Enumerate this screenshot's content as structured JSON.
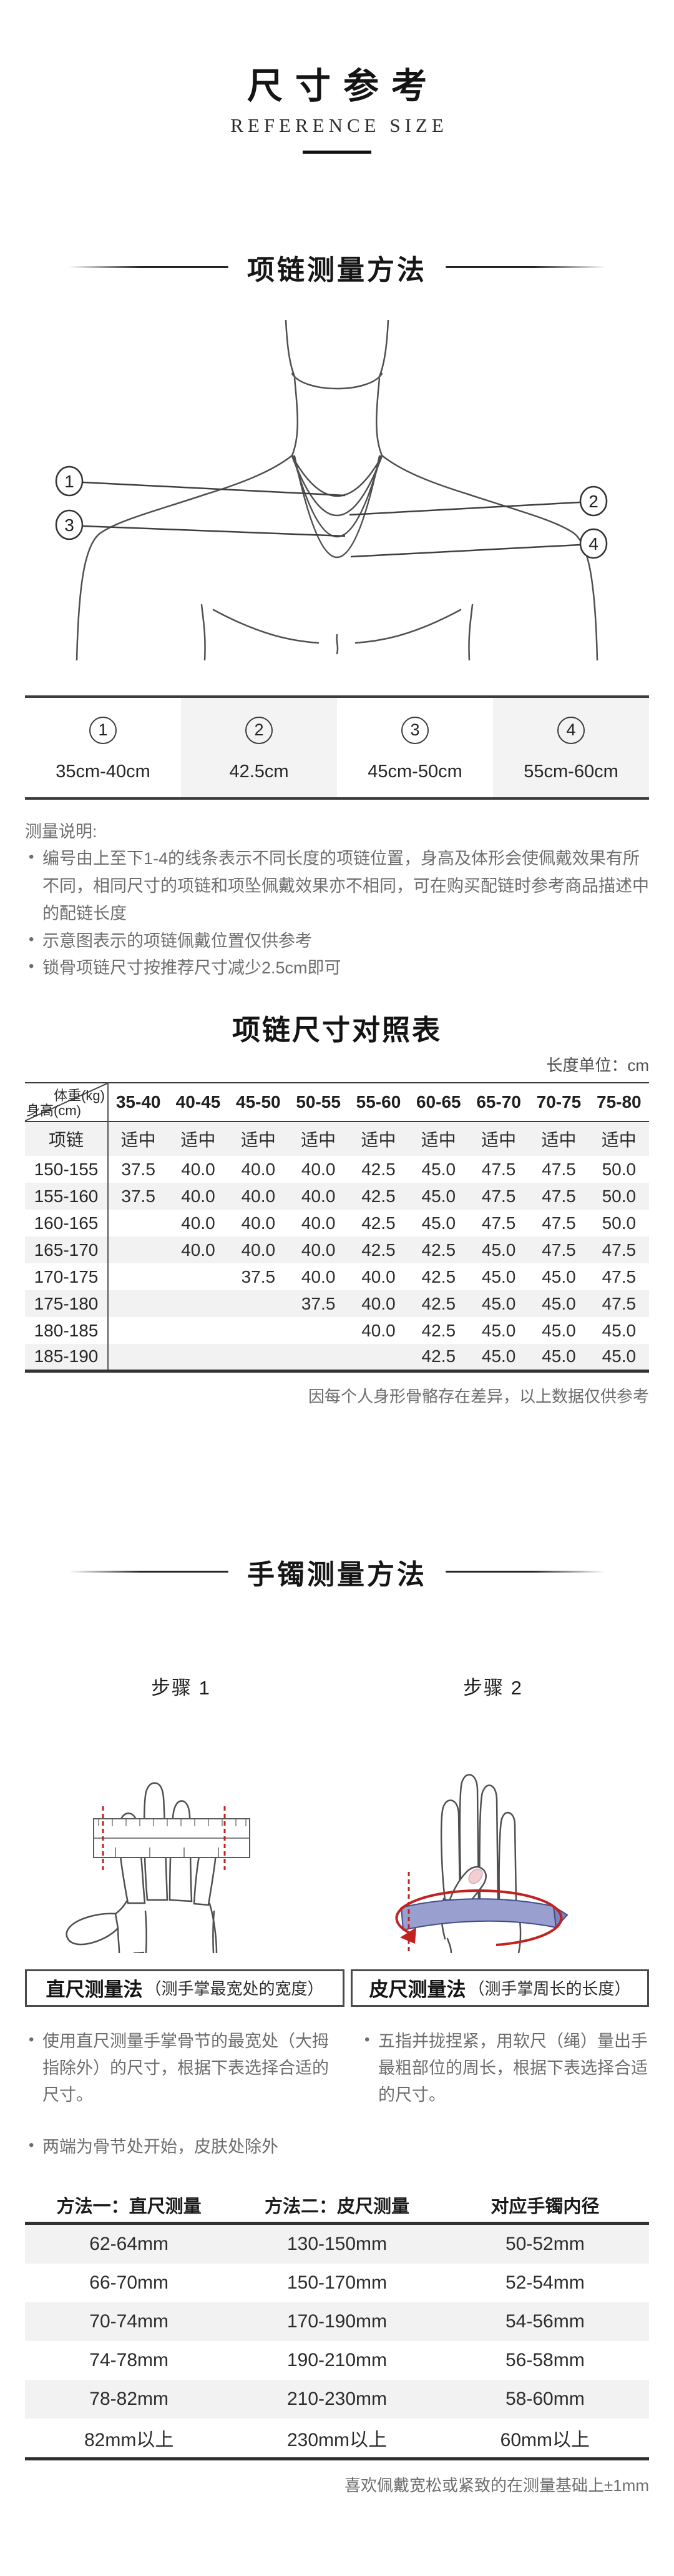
{
  "page": {
    "title": "尺寸参考",
    "subtitle": "REFERENCE SIZE"
  },
  "necklace_section": {
    "heading": "项链测量方法",
    "illustration_labels": [
      "1",
      "2",
      "3",
      "4"
    ],
    "position_table": {
      "columns": [
        {
          "num": "1",
          "size": "35cm-40cm"
        },
        {
          "num": "2",
          "size": "42.5cm"
        },
        {
          "num": "3",
          "size": "45cm-50cm"
        },
        {
          "num": "4",
          "size": "55cm-60cm"
        }
      ]
    },
    "notes_title": "测量说明:",
    "notes": [
      "编号由上至下1-4的线条表示不同长度的项链位置，身高及体形会使佩戴效果有所不同，相同尺寸的项链和项坠佩戴效果亦不相同，可在购买配链时参考商品描述中的配链长度",
      "示意图表示的项链佩戴位置仅供参考",
      "锁骨项链尺寸按推荐尺寸减少2.5cm即可"
    ]
  },
  "size_chart": {
    "title": "项链尺寸对照表",
    "unit_label": "长度单位：cm",
    "corner": {
      "top": "体重(kg)",
      "bottom": "身高(cm)"
    },
    "weight_columns": [
      "35-40",
      "40-45",
      "45-50",
      "50-55",
      "55-60",
      "60-65",
      "65-70",
      "70-75",
      "75-80"
    ],
    "fit_row": {
      "label": "项链",
      "values": [
        "适中",
        "适中",
        "适中",
        "适中",
        "适中",
        "适中",
        "适中",
        "适中",
        "适中"
      ]
    },
    "rows": [
      {
        "height": "150-155",
        "values": [
          "37.5",
          "40.0",
          "40.0",
          "40.0",
          "42.5",
          "45.0",
          "47.5",
          "47.5",
          "50.0"
        ]
      },
      {
        "height": "155-160",
        "values": [
          "37.5",
          "40.0",
          "40.0",
          "40.0",
          "42.5",
          "45.0",
          "47.5",
          "47.5",
          "50.0"
        ]
      },
      {
        "height": "160-165",
        "values": [
          "",
          "40.0",
          "40.0",
          "40.0",
          "42.5",
          "45.0",
          "47.5",
          "47.5",
          "50.0"
        ]
      },
      {
        "height": "165-170",
        "values": [
          "",
          "40.0",
          "40.0",
          "40.0",
          "42.5",
          "42.5",
          "45.0",
          "47.5",
          "47.5"
        ]
      },
      {
        "height": "170-175",
        "values": [
          "",
          "",
          "37.5",
          "40.0",
          "40.0",
          "42.5",
          "45.0",
          "45.0",
          "47.5"
        ]
      },
      {
        "height": "175-180",
        "values": [
          "",
          "",
          "",
          "37.5",
          "40.0",
          "42.5",
          "45.0",
          "45.0",
          "47.5"
        ]
      },
      {
        "height": "180-185",
        "values": [
          "",
          "",
          "",
          "",
          "40.0",
          "42.5",
          "45.0",
          "45.0",
          "45.0"
        ]
      },
      {
        "height": "185-190",
        "values": [
          "",
          "",
          "",
          "",
          "",
          "42.5",
          "45.0",
          "45.0",
          "45.0"
        ]
      }
    ],
    "footnote": "因每个人身形骨骼存在差异，以上数据仅供参考"
  },
  "bracelet_section": {
    "heading": "手镯测量方法",
    "steps": [
      "步骤 1",
      "步骤 2"
    ],
    "methods": [
      {
        "name": "直尺测量法",
        "desc": "（测手掌最宽处的宽度）",
        "bullets": [
          "使用直尺测量手掌骨节的最宽处（大拇指除外）的尺寸，根据下表选择合适的尺寸。",
          "两端为骨节处开始，皮肤处除外"
        ]
      },
      {
        "name": "皮尺测量法",
        "desc": "（测手掌周长的长度）",
        "bullets": [
          "五指并拢捏紧，用软尺（绳）量出手最粗部位的周长，根据下表选择合适的尺寸。"
        ]
      }
    ],
    "size_table": {
      "headers": [
        "方法一：直尺测量",
        "方法二：皮尺测量",
        "对应手镯内径"
      ],
      "rows": [
        [
          "62-64mm",
          "130-150mm",
          "50-52mm"
        ],
        [
          "66-70mm",
          "150-170mm",
          "52-54mm"
        ],
        [
          "70-74mm",
          "170-190mm",
          "54-56mm"
        ],
        [
          "74-78mm",
          "190-210mm",
          "56-58mm"
        ],
        [
          "78-82mm",
          "210-230mm",
          "58-60mm"
        ],
        [
          "82mm以上",
          "230mm以上",
          "60mm以上"
        ]
      ],
      "footnote": "喜欢佩戴宽松或紧致的在测量基础上±1mm"
    }
  },
  "colors": {
    "stripe_gray": "#f2f2f2",
    "border_dark": "#3c3c3c",
    "note_gray": "#6d6d6d",
    "measure_red": "#c22121",
    "band_blue": "#99a0cf"
  }
}
